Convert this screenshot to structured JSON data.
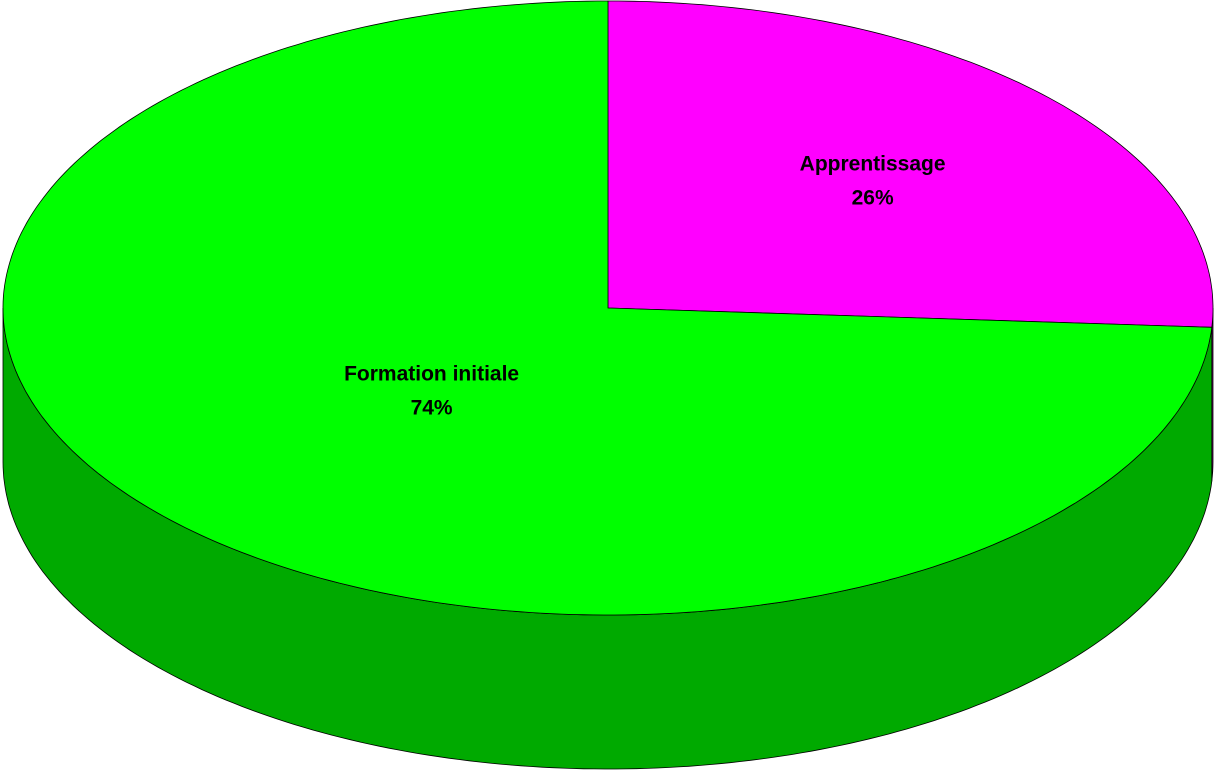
{
  "chart_data": {
    "type": "pie",
    "categories": [
      "Apprentissage",
      "Formation initiale"
    ],
    "values": [
      26,
      74
    ],
    "value_labels": [
      "26%",
      "74%"
    ],
    "colors": [
      "#ff00ff",
      "#00ff00"
    ],
    "side_colors": [
      "#aa00aa",
      "#00aa00"
    ]
  }
}
